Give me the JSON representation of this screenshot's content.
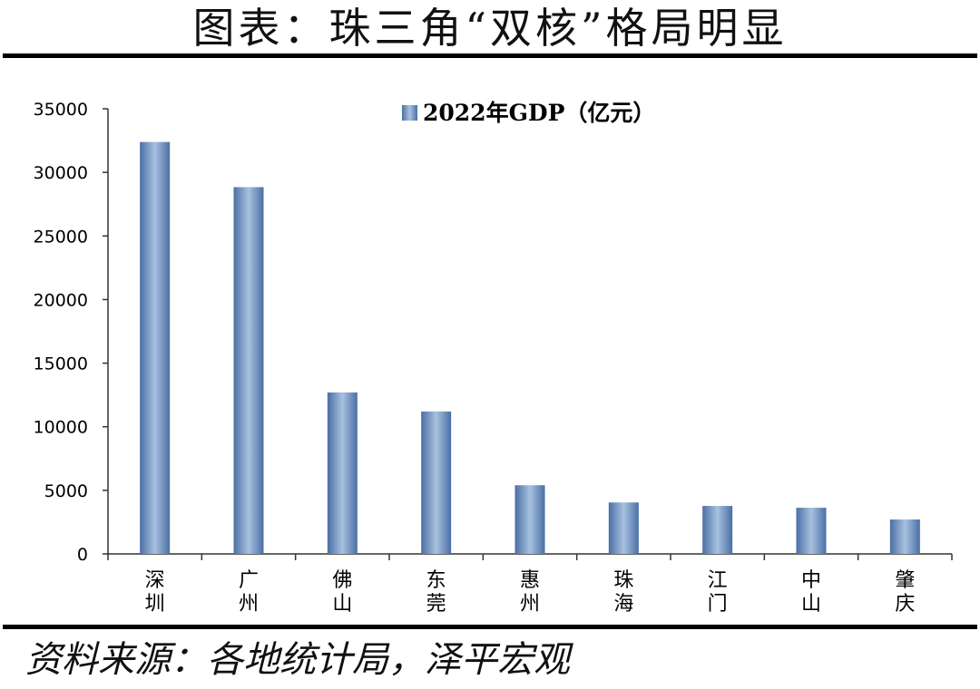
{
  "page_title": "图表：珠三角“双核”格局明显",
  "source_note": "资料来源：各地统计局，泽平宏观",
  "chart_data": {
    "type": "bar",
    "title": "",
    "xlabel": "",
    "ylabel": "",
    "categories": [
      "深圳",
      "广州",
      "佛山",
      "东莞",
      "惠州",
      "珠海",
      "江门",
      "中山",
      "肇庆"
    ],
    "series": [
      {
        "name": "2022年GDP（亿元）",
        "values": [
          32388,
          28839,
          12698,
          11200,
          5401,
          4046,
          3773,
          3631,
          2706
        ]
      }
    ],
    "yticks": [
      0,
      5000,
      10000,
      15000,
      20000,
      25000,
      30000,
      35000
    ],
    "ylim": [
      0,
      35000
    ],
    "grid": false,
    "legend_position": "top-center",
    "colors": {
      "bar_edge": "#4a6fa5",
      "bar_center": "#a8c1df",
      "axis": "#333333"
    }
  }
}
